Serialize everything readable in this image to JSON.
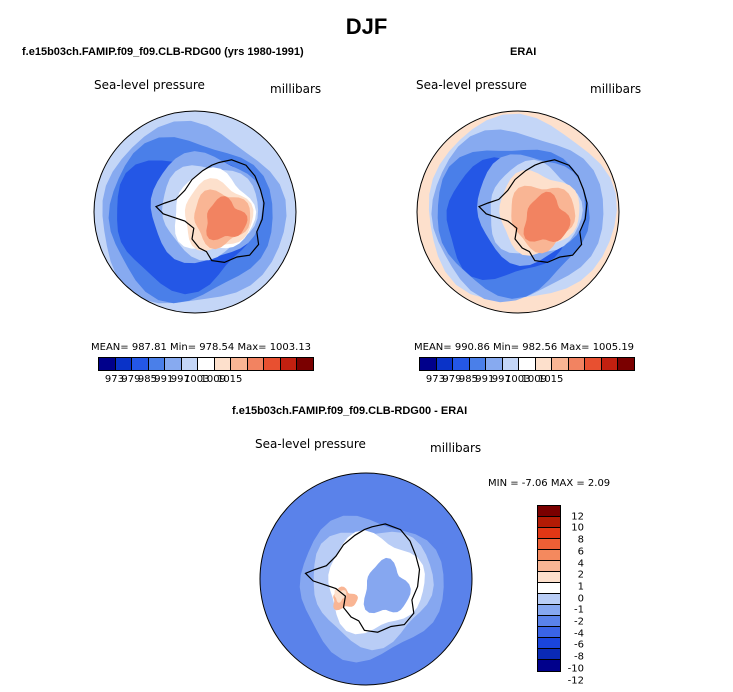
{
  "chart_data": {
    "type": "heatmap",
    "title": "DJF",
    "palette_slp": [
      "#00008b",
      "#0a33c8",
      "#2457e6",
      "#4a7fe9",
      "#87aaf0",
      "#c4d6f7",
      "#ffffff",
      "#fde0cc",
      "#f9b594",
      "#f28361",
      "#e85030",
      "#c22010",
      "#7a0000"
    ],
    "palette_diff": [
      "#00008b",
      "#0a2ab5",
      "#1a45dd",
      "#3a64e6",
      "#5a82ea",
      "#86a7f0",
      "#b9cdf6",
      "#ffffff",
      "#fde0cc",
      "#f9b594",
      "#f4895e",
      "#ed5f35",
      "#e13715",
      "#b21b05",
      "#7a0000"
    ],
    "panels": [
      {
        "title": "f.e15b03ch.FAMIP.f09_f09.CLB-RDG00 (yrs 1980-1991)",
        "variable": "Sea-level pressure",
        "units": "millibars",
        "stats_text": "MEAN= 987.81  Min= 978.54  Max= 1003.13",
        "mean": 987.81,
        "min": 978.54,
        "max": 1003.13,
        "colorbar_ticks": [
          "973",
          "979",
          "985",
          "991",
          "997",
          "1003",
          "1009",
          "1015"
        ]
      },
      {
        "title": "ERAI",
        "variable": "Sea-level pressure",
        "units": "millibars",
        "stats_text": "MEAN= 990.86  Min= 982.56  Max= 1005.19",
        "mean": 990.86,
        "min": 982.56,
        "max": 1005.19,
        "colorbar_ticks": [
          "973",
          "979",
          "985",
          "991",
          "997",
          "1003",
          "1009",
          "1015"
        ]
      },
      {
        "title": "f.e15b03ch.FAMIP.f09_f09.CLB-RDG00 - ERAI",
        "variable": "Sea-level pressure",
        "units": "millibars",
        "stats_text": "MIN =   -7.06  MAX =   2.09",
        "min": -7.06,
        "max": 2.09,
        "colorbar_ticks": [
          "12",
          "10",
          "8",
          "6",
          "4",
          "2",
          "1",
          "0",
          "-1",
          "-2",
          "-4",
          "-6",
          "-8",
          "-10",
          "-12"
        ]
      }
    ]
  }
}
